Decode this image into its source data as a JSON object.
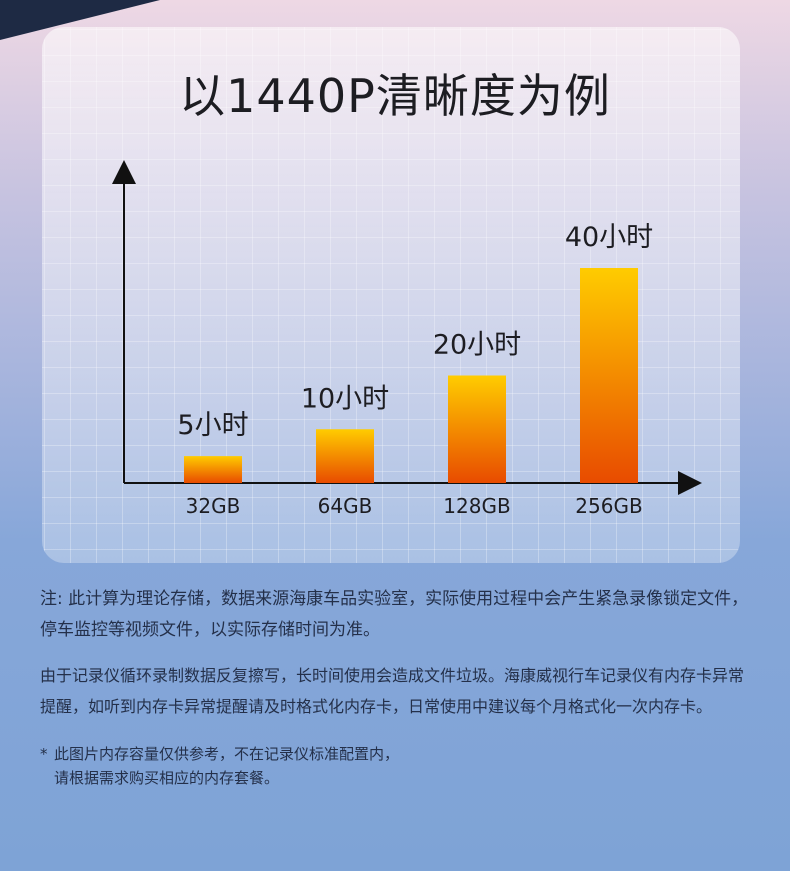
{
  "title": "以1440P清晰度为例",
  "chart_data": {
    "type": "bar",
    "categories": [
      "32GB",
      "64GB",
      "128GB",
      "256GB"
    ],
    "values": [
      5,
      10,
      20,
      40
    ],
    "value_labels": [
      "5小时",
      "10小时",
      "20小时",
      "40小时"
    ],
    "ylim": [
      0,
      40
    ],
    "xlabel": "",
    "ylabel": "",
    "grid": true,
    "colors": {
      "bar_top": "#ffcc00",
      "bar_bottom": "#e84b00",
      "axis": "#111111"
    }
  },
  "notes": {
    "p1": "注: 此计算为理论存储，数据来源海康车品实验室，实际使用过程中会产生紧急录像锁定文件，停车监控等视频文件，以实际存储时间为准。",
    "p2": "由于记录仪循环录制数据反复擦写，长时间使用会造成文件垃圾。海康威视行车记录仪有内存卡异常提醒，如听到内存卡异常提醒请及时格式化内存卡，日常使用中建议每个月格式化一次内存卡。",
    "footnote_star": "*",
    "footnote_line1": "此图片内存容量仅供参考，不在记录仪标准配置内，",
    "footnote_line2": "请根据需求购买相应的内存套餐。"
  }
}
